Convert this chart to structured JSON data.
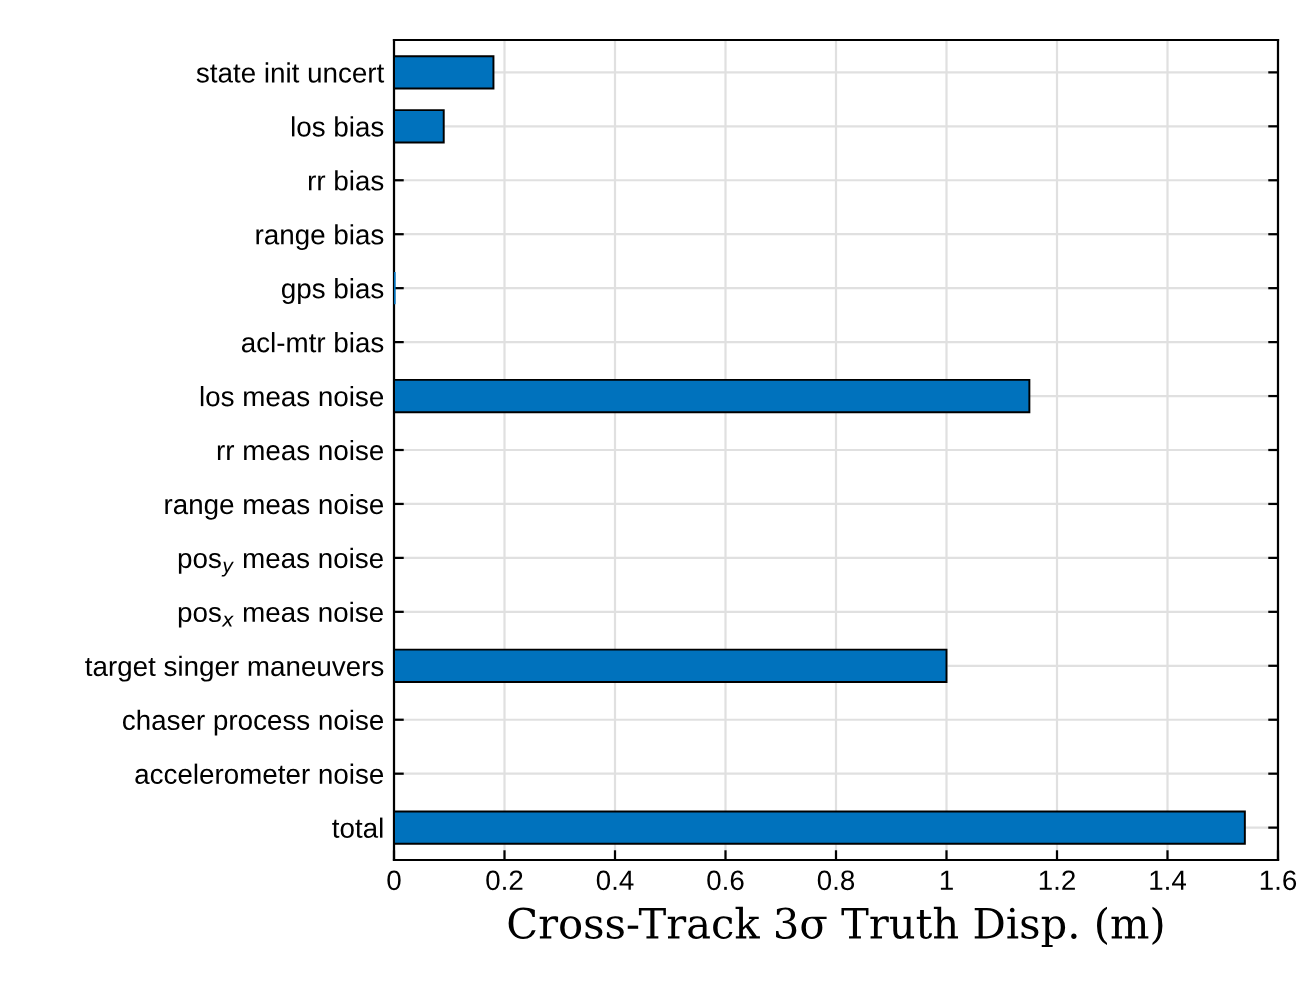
{
  "chart_data": {
    "type": "bar",
    "orientation": "horizontal",
    "xlabel": "Cross-Track 3σ Truth Disp. (m)",
    "categories": [
      "state init uncert",
      "los bias",
      "rr bias",
      "range bias",
      "gps bias",
      "acl-mtr bias",
      "los meas noise",
      "rr meas noise",
      "range meas noise",
      "pos$_{y}$ meas noise",
      "pos$_{x}$ meas noise",
      "target singer maneuvers",
      "chaser process noise",
      "accelerometer noise",
      "total"
    ],
    "values": [
      0.18,
      0.09,
      0,
      0,
      0.003,
      0,
      1.15,
      0,
      0,
      0,
      0,
      1.0,
      0,
      0,
      1.54
    ],
    "color": "#0072bd",
    "xlim": [
      0,
      1.6
    ],
    "xticks": [
      0,
      0.2,
      0.4,
      0.6,
      0.8,
      1,
      1.2,
      1.4,
      1.6
    ],
    "grid": true
  }
}
